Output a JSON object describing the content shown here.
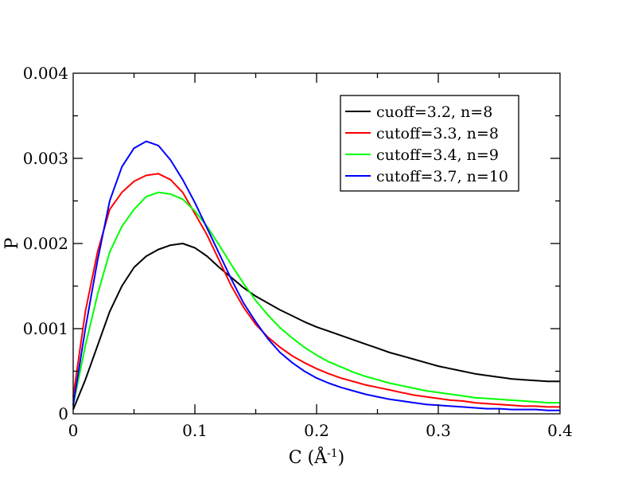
{
  "chart_data": {
    "type": "line",
    "title": "",
    "xlabel": "C (Å",
    "xlabel_sup": "-1",
    "xlabel_close": ")",
    "ylabel": "P",
    "xlim": [
      0,
      0.4
    ],
    "ylim": [
      0,
      0.004
    ],
    "x_ticks": [
      0,
      0.1,
      0.2,
      0.3,
      0.4
    ],
    "x_tick_labels": [
      "0",
      "0.1",
      "0.2",
      "0.3",
      "0.4"
    ],
    "y_ticks": [
      0,
      0.001,
      0.002,
      0.003,
      0.004
    ],
    "y_tick_labels": [
      "0",
      "0.001",
      "0.002",
      "0.003",
      "0.004"
    ],
    "grid": false,
    "legend_position": "top-right",
    "series": [
      {
        "name": "cuoff=3.2, n=8",
        "color": "#000000",
        "x": [
          0,
          0.01,
          0.02,
          0.03,
          0.04,
          0.05,
          0.06,
          0.07,
          0.08,
          0.09,
          0.1,
          0.11,
          0.12,
          0.13,
          0.14,
          0.15,
          0.16,
          0.17,
          0.18,
          0.19,
          0.2,
          0.21,
          0.22,
          0.23,
          0.24,
          0.25,
          0.26,
          0.27,
          0.28,
          0.29,
          0.3,
          0.31,
          0.32,
          0.33,
          0.34,
          0.35,
          0.36,
          0.37,
          0.38,
          0.39,
          0.4
        ],
        "y": [
          5e-05,
          0.0004,
          0.0008,
          0.0012,
          0.0015,
          0.00172,
          0.00185,
          0.00193,
          0.00198,
          0.002,
          0.00195,
          0.00185,
          0.00172,
          0.0016,
          0.00148,
          0.00138,
          0.0013,
          0.00122,
          0.00115,
          0.00108,
          0.00102,
          0.00097,
          0.00092,
          0.00087,
          0.00082,
          0.00077,
          0.00072,
          0.00068,
          0.00064,
          0.0006,
          0.00056,
          0.00053,
          0.0005,
          0.00047,
          0.00045,
          0.00043,
          0.00041,
          0.0004,
          0.00039,
          0.00038,
          0.00038
        ]
      },
      {
        "name": "cutoff=3.3, n=8",
        "color": "#ff0000",
        "x": [
          0,
          0.01,
          0.02,
          0.03,
          0.04,
          0.05,
          0.06,
          0.07,
          0.08,
          0.09,
          0.1,
          0.11,
          0.12,
          0.13,
          0.14,
          0.15,
          0.16,
          0.17,
          0.18,
          0.19,
          0.2,
          0.21,
          0.22,
          0.23,
          0.24,
          0.25,
          0.26,
          0.27,
          0.28,
          0.29,
          0.3,
          0.31,
          0.32,
          0.33,
          0.34,
          0.35,
          0.36,
          0.37,
          0.38,
          0.39,
          0.4
        ],
        "y": [
          0.0002,
          0.0012,
          0.0019,
          0.0024,
          0.0026,
          0.00273,
          0.0028,
          0.00282,
          0.00275,
          0.0026,
          0.00235,
          0.0021,
          0.0018,
          0.0015,
          0.00125,
          0.00105,
          0.0009,
          0.00078,
          0.00068,
          0.0006,
          0.00053,
          0.00047,
          0.00042,
          0.00038,
          0.00034,
          0.00031,
          0.00028,
          0.00025,
          0.00022,
          0.0002,
          0.00018,
          0.00016,
          0.00015,
          0.00013,
          0.00012,
          0.00011,
          0.0001,
          9e-05,
          9e-05,
          8e-05,
          8e-05
        ]
      },
      {
        "name": "cutoff=3.4, n=9",
        "color": "#00ff00",
        "x": [
          0,
          0.01,
          0.02,
          0.03,
          0.04,
          0.05,
          0.06,
          0.07,
          0.08,
          0.09,
          0.1,
          0.11,
          0.12,
          0.13,
          0.14,
          0.15,
          0.16,
          0.17,
          0.18,
          0.19,
          0.2,
          0.21,
          0.22,
          0.23,
          0.24,
          0.25,
          0.26,
          0.27,
          0.28,
          0.29,
          0.3,
          0.31,
          0.32,
          0.33,
          0.34,
          0.35,
          0.36,
          0.37,
          0.38,
          0.39,
          0.4
        ],
        "y": [
          0.0001,
          0.0008,
          0.0014,
          0.0019,
          0.0022,
          0.0024,
          0.00255,
          0.0026,
          0.00258,
          0.00252,
          0.00238,
          0.0022,
          0.00198,
          0.00175,
          0.00153,
          0.00133,
          0.00116,
          0.00101,
          0.00089,
          0.00078,
          0.00069,
          0.00061,
          0.00055,
          0.00049,
          0.00044,
          0.0004,
          0.00036,
          0.00033,
          0.0003,
          0.00027,
          0.00025,
          0.00023,
          0.00021,
          0.00019,
          0.00018,
          0.00017,
          0.00016,
          0.00015,
          0.00014,
          0.00013,
          0.00013
        ]
      },
      {
        "name": "cutoff=3.7, n=10",
        "color": "#0000ff",
        "x": [
          0,
          0.01,
          0.02,
          0.03,
          0.04,
          0.05,
          0.06,
          0.07,
          0.08,
          0.09,
          0.1,
          0.11,
          0.12,
          0.13,
          0.14,
          0.15,
          0.16,
          0.17,
          0.18,
          0.19,
          0.2,
          0.21,
          0.22,
          0.23,
          0.24,
          0.25,
          0.26,
          0.27,
          0.28,
          0.29,
          0.3,
          0.31,
          0.32,
          0.33,
          0.34,
          0.35,
          0.36,
          0.37,
          0.38,
          0.39,
          0.4
        ],
        "y": [
          0.0001,
          0.001,
          0.0018,
          0.0025,
          0.0029,
          0.00312,
          0.0032,
          0.00315,
          0.00298,
          0.00275,
          0.00248,
          0.00218,
          0.00188,
          0.00158,
          0.0013,
          0.00108,
          0.00088,
          0.00072,
          0.0006,
          0.0005,
          0.00042,
          0.00036,
          0.00031,
          0.00027,
          0.00023,
          0.0002,
          0.00017,
          0.00015,
          0.00013,
          0.00011,
          0.0001,
          9e-05,
          8e-05,
          7e-05,
          6e-05,
          6e-05,
          5e-05,
          5e-05,
          5e-05,
          4e-05,
          4e-05
        ]
      }
    ]
  }
}
